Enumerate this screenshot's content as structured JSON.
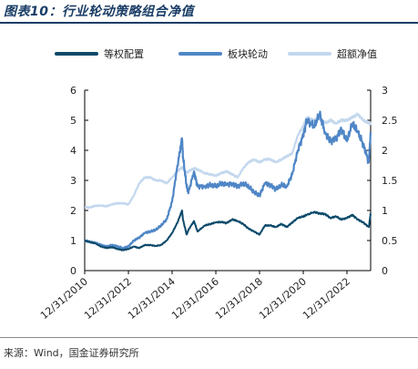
{
  "figure": {
    "title": "图表10：行业轮动策略组合净值",
    "source": "来源：Wind，国金证券研究所"
  },
  "colors": {
    "title": "#1a3d66",
    "series": [
      "#0d4a6b",
      "#4f86c6",
      "#c3d8ee"
    ],
    "axis": "#000000"
  },
  "chart_data": {
    "type": "line",
    "legend_position": "top",
    "grid": false,
    "x_axis": {
      "range": [
        "2010-12-31",
        "2024-01-31"
      ],
      "tick_labels": [
        "12/31/2010",
        "12/31/2012",
        "12/31/2014",
        "12/31/2016",
        "12/31/2018",
        "12/31/2020",
        "12/31/2022"
      ],
      "tick_dates": [
        "2010-12-31",
        "2012-12-31",
        "2014-12-31",
        "2016-12-31",
        "2018-12-31",
        "2020-12-31",
        "2022-12-31"
      ]
    },
    "y_left": {
      "range": [
        0,
        6
      ],
      "tick_labels": [
        "0",
        "1",
        "2",
        "3",
        "4",
        "5",
        "6"
      ],
      "ticks": [
        0,
        1,
        2,
        3,
        4,
        5,
        6
      ]
    },
    "y_right": {
      "range": [
        0,
        3
      ],
      "tick_labels": [
        "0",
        "0.5",
        "1",
        "1.5",
        "2",
        "2.5",
        "3"
      ],
      "ticks": [
        0,
        0.5,
        1,
        1.5,
        2,
        2.5,
        3
      ]
    },
    "x": [
      "2010-12-31",
      "2011-03-31",
      "2011-06-30",
      "2011-09-30",
      "2011-12-31",
      "2012-03-31",
      "2012-06-30",
      "2012-09-30",
      "2012-12-31",
      "2013-03-31",
      "2013-06-30",
      "2013-09-30",
      "2013-12-31",
      "2014-03-31",
      "2014-06-30",
      "2014-09-30",
      "2014-12-31",
      "2015-03-31",
      "2015-06-15",
      "2015-06-30",
      "2015-08-31",
      "2015-09-30",
      "2015-12-31",
      "2016-02-29",
      "2016-06-30",
      "2016-09-30",
      "2016-12-31",
      "2017-03-31",
      "2017-06-30",
      "2017-09-30",
      "2017-12-31",
      "2018-03-31",
      "2018-06-30",
      "2018-09-30",
      "2018-12-31",
      "2019-03-31",
      "2019-06-30",
      "2019-09-30",
      "2019-12-31",
      "2020-03-31",
      "2020-06-30",
      "2020-09-30",
      "2020-12-31",
      "2021-02-28",
      "2021-06-30",
      "2021-09-30",
      "2021-12-31",
      "2022-03-31",
      "2022-06-30",
      "2022-09-30",
      "2022-12-31",
      "2023-03-31",
      "2023-06-30",
      "2023-09-30",
      "2023-12-31",
      "2024-01-31"
    ],
    "series": [
      {
        "name": "等权配置",
        "axis": "left",
        "values": [
          1.0,
          0.95,
          0.9,
          0.8,
          0.75,
          0.78,
          0.72,
          0.68,
          0.72,
          0.8,
          0.75,
          0.85,
          0.85,
          0.82,
          0.85,
          1.0,
          1.25,
          1.6,
          2.0,
          1.7,
          1.2,
          1.35,
          1.65,
          1.3,
          1.5,
          1.55,
          1.6,
          1.62,
          1.58,
          1.7,
          1.65,
          1.55,
          1.4,
          1.3,
          1.2,
          1.5,
          1.5,
          1.45,
          1.55,
          1.45,
          1.6,
          1.75,
          1.8,
          1.85,
          1.95,
          1.9,
          1.88,
          1.75,
          1.8,
          1.7,
          1.75,
          1.85,
          1.7,
          1.6,
          1.45,
          1.9
        ]
      },
      {
        "name": "板块轮动",
        "axis": "left",
        "values": [
          1.0,
          0.95,
          0.92,
          0.85,
          0.8,
          0.85,
          0.8,
          0.75,
          0.8,
          1.0,
          1.1,
          1.25,
          1.3,
          1.35,
          1.5,
          1.7,
          2.3,
          3.5,
          4.4,
          3.8,
          2.8,
          2.6,
          3.3,
          2.8,
          2.8,
          2.85,
          2.8,
          2.9,
          2.85,
          2.9,
          2.8,
          2.9,
          2.8,
          2.6,
          2.5,
          2.9,
          2.85,
          2.7,
          2.85,
          2.8,
          3.2,
          4.0,
          4.5,
          5.0,
          4.8,
          5.2,
          4.6,
          4.3,
          4.4,
          4.7,
          4.3,
          4.9,
          4.6,
          4.2,
          3.6,
          4.6
        ]
      },
      {
        "name": "超额净值",
        "axis": "right",
        "values": [
          1.05,
          1.05,
          1.08,
          1.08,
          1.07,
          1.1,
          1.12,
          1.12,
          1.1,
          1.25,
          1.45,
          1.55,
          1.55,
          1.5,
          1.5,
          1.45,
          1.55,
          1.65,
          1.72,
          1.7,
          1.62,
          1.65,
          1.7,
          1.68,
          1.62,
          1.6,
          1.58,
          1.62,
          1.65,
          1.6,
          1.55,
          1.7,
          1.8,
          1.85,
          1.8,
          1.85,
          1.85,
          1.8,
          1.85,
          1.9,
          1.95,
          2.25,
          2.4,
          2.55,
          2.5,
          2.55,
          2.45,
          2.5,
          2.45,
          2.5,
          2.5,
          2.55,
          2.6,
          2.5,
          2.45,
          2.45
        ]
      }
    ]
  }
}
